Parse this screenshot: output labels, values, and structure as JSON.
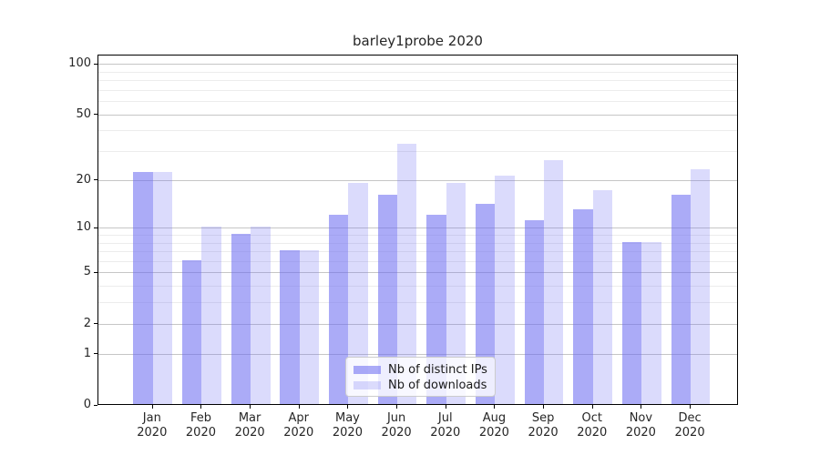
{
  "title": "barley1probe 2020",
  "chart_data": {
    "type": "bar",
    "title": "barley1probe 2020",
    "x_categories": [
      {
        "month": "Jan",
        "year": "2020"
      },
      {
        "month": "Feb",
        "year": "2020"
      },
      {
        "month": "Mar",
        "year": "2020"
      },
      {
        "month": "Apr",
        "year": "2020"
      },
      {
        "month": "May",
        "year": "2020"
      },
      {
        "month": "Jun",
        "year": "2020"
      },
      {
        "month": "Jul",
        "year": "2020"
      },
      {
        "month": "Aug",
        "year": "2020"
      },
      {
        "month": "Sep",
        "year": "2020"
      },
      {
        "month": "Oct",
        "year": "2020"
      },
      {
        "month": "Nov",
        "year": "2020"
      },
      {
        "month": "Dec",
        "year": "2020"
      }
    ],
    "series": [
      {
        "name": "Nb of distinct IPs",
        "color": "#a9a9f4",
        "values": [
          22,
          6,
          9,
          7,
          12,
          16,
          12,
          14,
          11,
          13,
          8,
          16
        ]
      },
      {
        "name": "Nb of downloads",
        "color": "#dcdcf8",
        "values": [
          22,
          10,
          10,
          7,
          19,
          33,
          19,
          21,
          26,
          17,
          8,
          23
        ]
      }
    ],
    "y_scale": "log1p",
    "y_ticks": [
      0,
      1,
      2,
      5,
      10,
      20,
      50,
      100
    ],
    "y_minor_gridlines": [
      3,
      4,
      6,
      7,
      8,
      9,
      30,
      40,
      60,
      70,
      80,
      90
    ],
    "ylim": [
      0,
      113
    ],
    "grid": true,
    "legend_position": "lower-center"
  }
}
